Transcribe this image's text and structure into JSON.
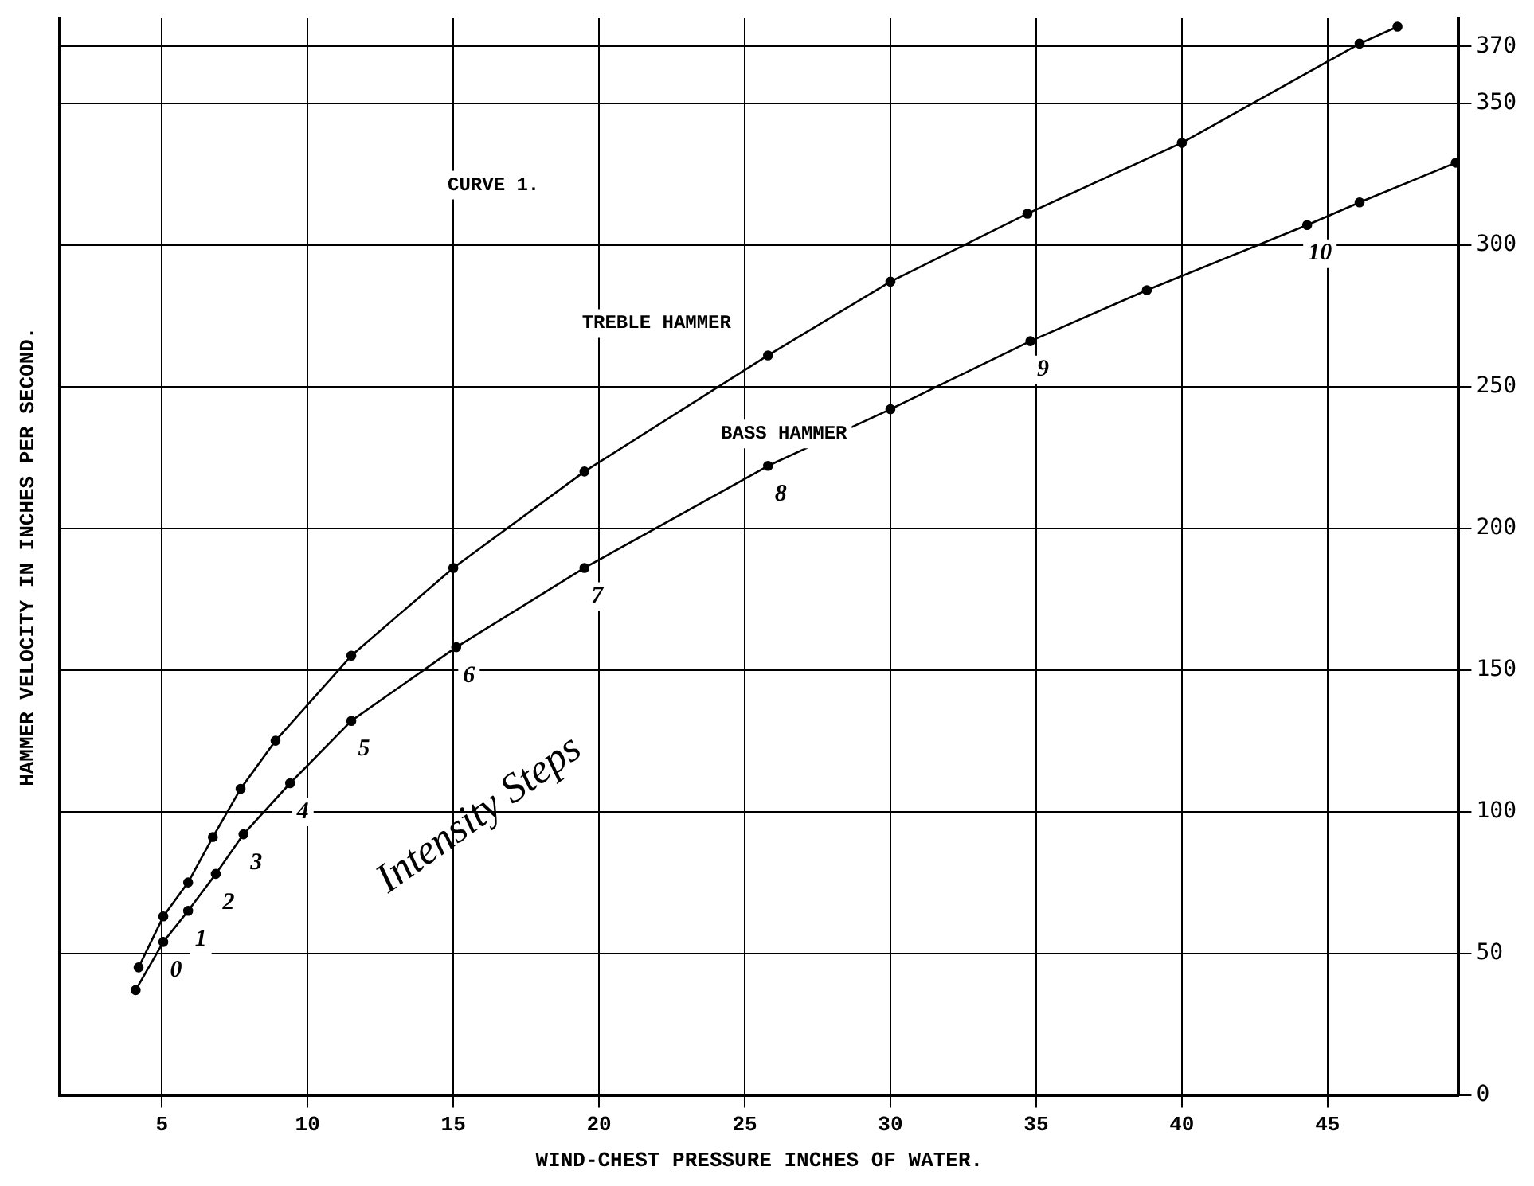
{
  "chart_data": {
    "type": "line",
    "title": "CURVE 1.",
    "xlabel": "WIND-CHEST PRESSURE INCHES OF WATER.",
    "ylabel": "HAMMER VELOCITY IN INCHES PER SECOND.",
    "xlim": [
      1.5,
      49.5
    ],
    "xticks": [
      5,
      10,
      15,
      20,
      25,
      30,
      35,
      40,
      45
    ],
    "ylim": [
      0,
      380
    ],
    "yticks": [
      0,
      50,
      100,
      150,
      200,
      250,
      300,
      350,
      370
    ],
    "grid": true,
    "legend": false,
    "marker": "circle",
    "line_style": "solid",
    "series": [
      {
        "name": "TREBLE HAMMER",
        "color": "#000000",
        "x": [
          4.2,
          5.05,
          5.9,
          6.75,
          7.7,
          8.9,
          11.5,
          15.0,
          19.5,
          25.8,
          30,
          34.7,
          40,
          46.1,
          47.4
        ],
        "values": [
          45,
          63,
          75,
          91,
          108,
          125,
          155,
          186,
          220,
          261,
          287,
          311,
          336,
          371,
          377
        ]
      },
      {
        "name": "BASS HAMMER",
        "color": "#000000",
        "x": [
          4.1,
          5.05,
          5.9,
          6.85,
          7.8,
          9.4,
          11.5,
          15.1,
          19.5,
          25.8,
          30,
          34.8,
          38.8,
          44.3,
          46.1,
          49.4
        ],
        "values": [
          37,
          54,
          65,
          78,
          92,
          110,
          132,
          158,
          186,
          222,
          242,
          266,
          284,
          307,
          315,
          329
        ]
      }
    ],
    "annotations": [
      "Intensity Steps",
      {
        "text": "0",
        "x": 5.05,
        "y": 54
      },
      {
        "text": "1",
        "x": 5.9,
        "y": 65
      },
      {
        "text": "2",
        "x": 6.85,
        "y": 78
      },
      {
        "text": "3",
        "x": 7.8,
        "y": 92
      },
      {
        "text": "4",
        "x": 9.4,
        "y": 110
      },
      {
        "text": "5",
        "x": 11.5,
        "y": 132
      },
      {
        "text": "6",
        "x": 15.1,
        "y": 158
      },
      {
        "text": "7",
        "x": 19.5,
        "y": 186
      },
      {
        "text": "8",
        "x": 25.8,
        "y": 222
      },
      {
        "text": "9",
        "x": 34.8,
        "y": 266
      },
      {
        "text": "10",
        "x": 44.3,
        "y": 307
      }
    ]
  }
}
